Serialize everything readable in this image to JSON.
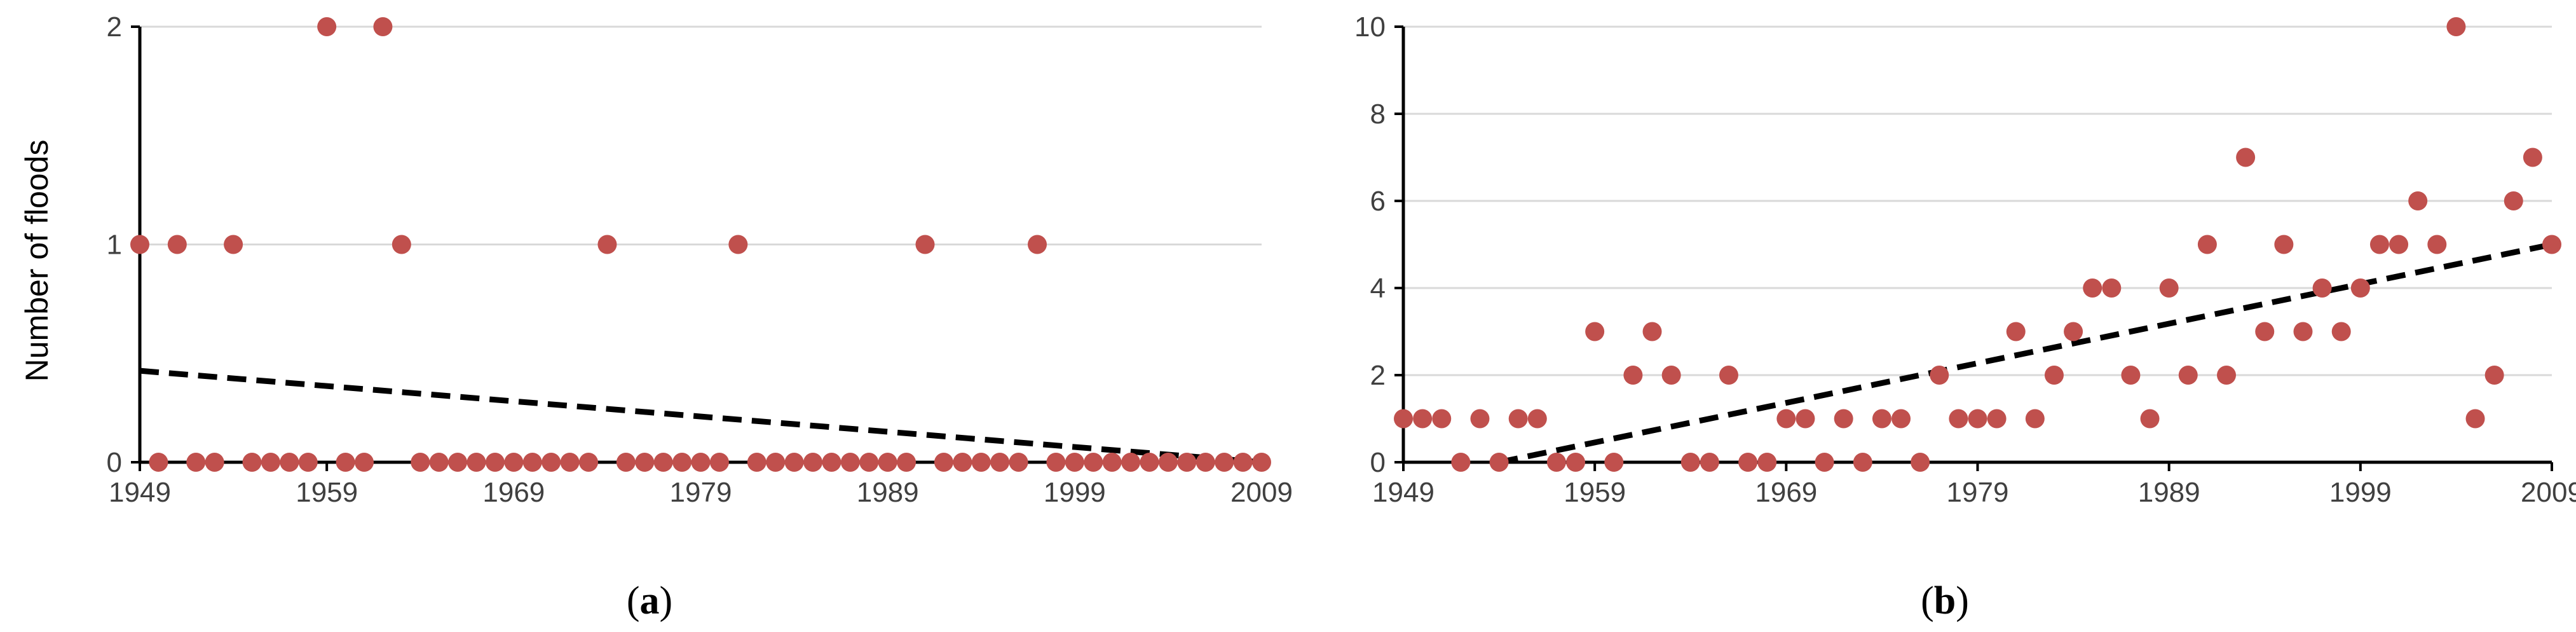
{
  "colors": {
    "point": "#C0504D",
    "trend": "#000000",
    "grid": "#D9D9D9",
    "axis": "#000000"
  },
  "chart_data": [
    {
      "type": "scatter",
      "panel_label": "a",
      "ylabel": "Number of floods",
      "xlim": [
        1949,
        2009
      ],
      "ylim": [
        0,
        2
      ],
      "xticks": [
        "1949",
        "1959",
        "1969",
        "1979",
        "1989",
        "1999",
        "2009"
      ],
      "yticks": [
        "0",
        "1",
        "2"
      ],
      "grid": "horizontal",
      "x": [
        1949,
        1950,
        1951,
        1952,
        1953,
        1954,
        1955,
        1956,
        1957,
        1958,
        1959,
        1960,
        1961,
        1962,
        1963,
        1964,
        1965,
        1966,
        1967,
        1968,
        1969,
        1970,
        1971,
        1972,
        1973,
        1974,
        1975,
        1976,
        1977,
        1978,
        1979,
        1980,
        1981,
        1982,
        1983,
        1984,
        1985,
        1986,
        1987,
        1988,
        1989,
        1990,
        1991,
        1992,
        1993,
        1994,
        1995,
        1996,
        1997,
        1998,
        1999,
        2000,
        2001,
        2002,
        2003,
        2004,
        2005,
        2006,
        2007,
        2008,
        2009
      ],
      "y": [
        1,
        0,
        1,
        0,
        0,
        1,
        0,
        0,
        0,
        0,
        2,
        0,
        0,
        2,
        1,
        0,
        0,
        0,
        0,
        0,
        0,
        0,
        0,
        0,
        0,
        1,
        0,
        0,
        0,
        0,
        0,
        0,
        1,
        0,
        0,
        0,
        0,
        0,
        0,
        0,
        0,
        0,
        1,
        0,
        0,
        0,
        0,
        0,
        1,
        0,
        0,
        0,
        0,
        0,
        0,
        0,
        0,
        0,
        0,
        0,
        0
      ],
      "trend": {
        "start": [
          1949,
          0.42
        ],
        "end": [
          2009,
          0.0
        ]
      }
    },
    {
      "type": "scatter",
      "panel_label": "b",
      "ylabel": "",
      "xlim": [
        1949,
        2009
      ],
      "ylim": [
        0,
        10
      ],
      "xticks": [
        "1949",
        "1959",
        "1969",
        "1979",
        "1989",
        "1999",
        "2009"
      ],
      "yticks": [
        "0",
        "2",
        "4",
        "6",
        "8",
        "10"
      ],
      "grid": "horizontal",
      "x": [
        1949,
        1950,
        1951,
        1952,
        1953,
        1954,
        1955,
        1956,
        1957,
        1958,
        1959,
        1960,
        1961,
        1962,
        1963,
        1964,
        1965,
        1966,
        1967,
        1968,
        1969,
        1970,
        1971,
        1972,
        1973,
        1974,
        1975,
        1976,
        1977,
        1978,
        1979,
        1980,
        1981,
        1982,
        1983,
        1984,
        1985,
        1986,
        1987,
        1988,
        1989,
        1990,
        1991,
        1992,
        1993,
        1994,
        1995,
        1996,
        1997,
        1998,
        1999,
        2000,
        2001,
        2002,
        2003,
        2004,
        2005,
        2006,
        2007,
        2008,
        2009
      ],
      "y": [
        1,
        1,
        1,
        0,
        1,
        0,
        1,
        1,
        0,
        0,
        3,
        0,
        2,
        3,
        2,
        0,
        0,
        2,
        0,
        0,
        1,
        1,
        0,
        1,
        0,
        1,
        1,
        0,
        2,
        1,
        1,
        1,
        3,
        1,
        2,
        3,
        4,
        4,
        2,
        1,
        4,
        2,
        5,
        2,
        7,
        3,
        5,
        3,
        4,
        3,
        4,
        5,
        5,
        6,
        5,
        10,
        1,
        2,
        6,
        7,
        5
      ],
      "trend": {
        "start": [
          1954,
          0.0
        ],
        "end": [
          2009,
          5.0
        ]
      }
    }
  ]
}
